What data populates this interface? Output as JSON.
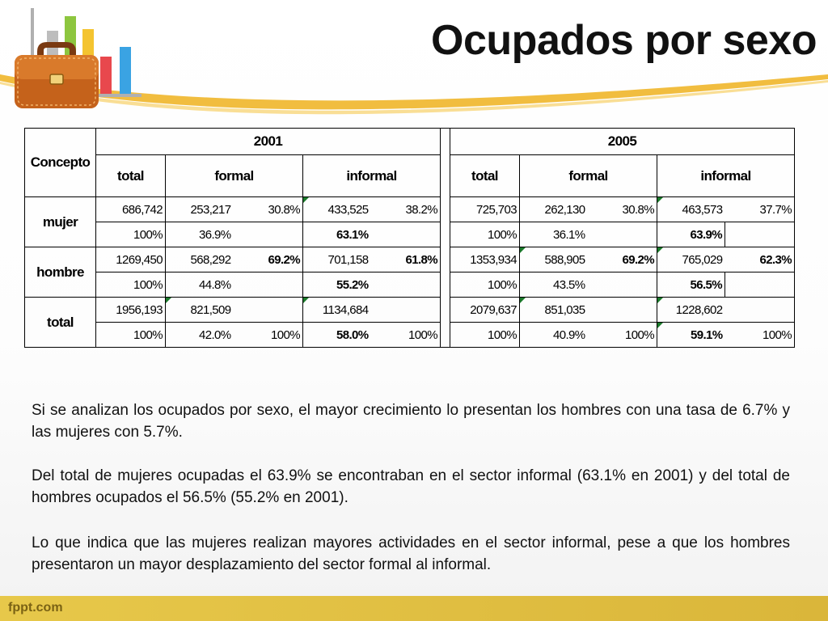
{
  "slide": {
    "title": "Ocupados por sexo",
    "footer": "fppt.com"
  },
  "table": {
    "concept_header": "Concepto",
    "year_2001": "2001",
    "year_2005": "2005",
    "col_total": "total",
    "col_formal": "formal",
    "col_informal": "informal",
    "rows": {
      "mujer": {
        "label": "mujer",
        "y2001": {
          "total": "686,742",
          "formal": "253,217",
          "formal_pct": "30.8%",
          "informal": "433,525",
          "informal_pct": "38.2%",
          "total_share": "100%",
          "formal_share": "36.9%",
          "informal_share": "63.1%"
        },
        "y2005": {
          "total": "725,703",
          "formal": "262,130",
          "formal_pct": "30.8%",
          "informal": "463,573",
          "informal_pct": "37.7%",
          "total_share": "100%",
          "formal_share": "36.1%",
          "informal_share": "63.9%"
        }
      },
      "hombre": {
        "label": "hombre",
        "y2001": {
          "total": "1269,450",
          "formal": "568,292",
          "formal_pct": "69.2%",
          "informal": "701,158",
          "informal_pct": "61.8%",
          "total_share": "100%",
          "formal_share": "44.8%",
          "informal_share": "55.2%"
        },
        "y2005": {
          "total": "1353,934",
          "formal": "588,905",
          "formal_pct": "69.2%",
          "informal": "765,029",
          "informal_pct": "62.3%",
          "total_share": "100%",
          "formal_share": "43.5%",
          "informal_share": "56.5%"
        }
      },
      "total": {
        "label": "total",
        "y2001": {
          "total": "1956,193",
          "formal": "821,509",
          "informal": "1134,684",
          "total_share": "100%",
          "formal_share": "42.0%",
          "formal_pct": "100%",
          "informal_share": "58.0%",
          "informal_pct": "100%"
        },
        "y2005": {
          "total": "2079,637",
          "formal": "851,035",
          "informal": "1228,602",
          "total_share": "100%",
          "formal_share": "40.9%",
          "formal_pct": "100%",
          "informal_share": "59.1%",
          "informal_pct": "100%"
        }
      }
    }
  },
  "text": {
    "p1": "Si se analizan los ocupados por sexo, el mayor crecimiento lo presentan los hombres con una tasa de 6.7% y las mujeres con 5.7%.",
    "p2": "Del total de mujeres ocupadas el 63.9% se encontraban en el sector informal (63.1% en 2001) y del total de hombres ocupados el 56.5% (55.2% en 2001).",
    "p3": "Lo que indica que las mujeres realizan mayores actividades en el sector informal, pese a que los hombres presentaron un mayor desplazamiento del sector formal al informal."
  },
  "colors": {
    "swoosh": "#f0b62a",
    "footer": "#dab63a",
    "cell_marker": "#1b7a2b"
  },
  "icons": [
    "briefcase-icon",
    "bar-chart-icon"
  ]
}
